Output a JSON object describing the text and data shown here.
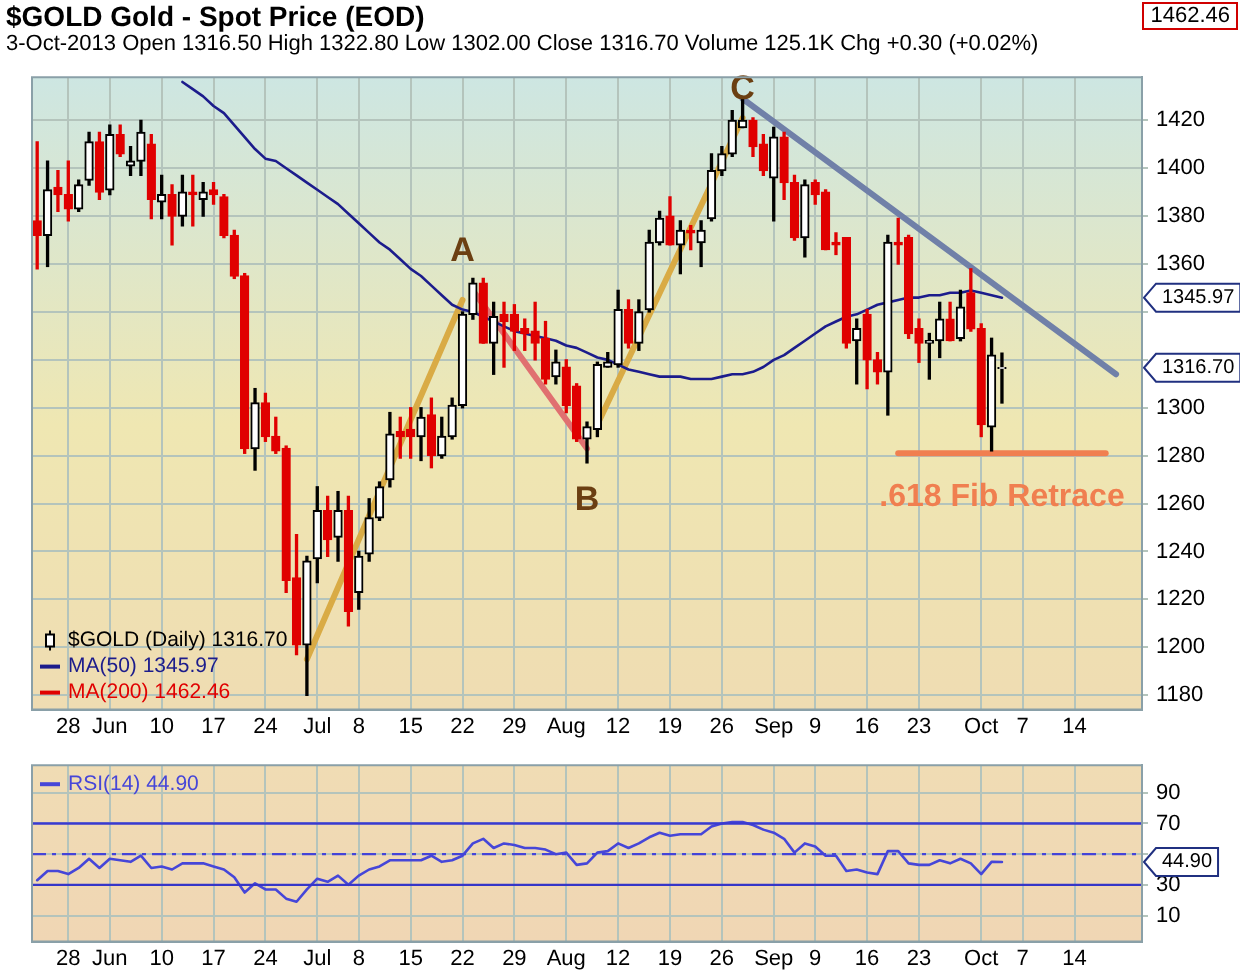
{
  "chart_data": [
    {
      "type": "candlestick",
      "title": "$GOLD Gold - Spot Price (EOD)",
      "subtitle": "3-Oct-2013   Open 1316.50  High 1322.80  Low 1302.00  Close 1316.70  Volume 125.1K  Chg +0.30 (+0.02%)",
      "categories": [
        null,
        null,
        null,
        "28",
        null,
        null,
        null,
        "Jun",
        null,
        null,
        null,
        null,
        "10",
        null,
        null,
        null,
        null,
        "17",
        null,
        null,
        null,
        null,
        "24",
        null,
        null,
        null,
        null,
        "Jul",
        null,
        null,
        null,
        "8",
        null,
        null,
        null,
        null,
        "15",
        null,
        null,
        null,
        null,
        "22",
        null,
        null,
        null,
        null,
        "29",
        null,
        null,
        null,
        null,
        "Aug",
        null,
        null,
        null,
        null,
        "12",
        null,
        null,
        null,
        null,
        "19",
        null,
        null,
        null,
        null,
        "26",
        null,
        null,
        null,
        null,
        "Sep",
        null,
        null,
        null,
        "9",
        null,
        null,
        null,
        null,
        "16",
        null,
        null,
        null,
        null,
        "23",
        null,
        null,
        null,
        null,
        null,
        "Oct",
        null,
        null,
        null,
        "7",
        null,
        null,
        null,
        null,
        "14",
        null,
        null,
        null,
        null,
        null,
        null
      ],
      "ylim": [
        1174,
        1438
      ],
      "yticks": [
        1180,
        1200,
        1220,
        1240,
        1260,
        1280,
        1300,
        {
          "value": 1320,
          "label": null
        },
        {
          "value": 1340,
          "label": null
        },
        1360,
        1380,
        1400,
        1420
      ],
      "grid": true,
      "legend": "bottom left",
      "annotations": [
        "A",
        "B",
        "C",
        "1345.97",
        "1316.70",
        "1462.46"
      ],
      "series": [
        {
          "name": "$GOLD (Daily) 1316.70",
          "type": "candlestick",
          "color": "#000000",
          "ohlc": [
            [
              1378,
              1411,
              1358,
              1372
            ],
            [
              1372,
              1403,
              1359,
              1391
            ],
            [
              1392,
              1399,
              1382,
              1389
            ],
            [
              1389,
              1403,
              1378,
              1383
            ],
            [
              1383,
              1395,
              1382,
              1393
            ],
            [
              1395,
              1415,
              1393,
              1411
            ],
            [
              1411,
              1415,
              1387,
              1390
            ],
            [
              1391,
              1418,
              1389,
              1414
            ],
            [
              1414,
              1418,
              1405,
              1406
            ],
            [
              1401,
              1409,
              1397,
              1403
            ],
            [
              1403,
              1420,
              1397,
              1415
            ],
            [
              1410,
              1414,
              1379,
              1387
            ],
            [
              1386,
              1397,
              1379,
              1389
            ],
            [
              1389,
              1393,
              1368,
              1380
            ],
            [
              1380,
              1397,
              1376,
              1390
            ],
            [
              1390,
              1397,
              1376,
              1389
            ],
            [
              1387,
              1394,
              1380,
              1390
            ],
            [
              1391,
              1394,
              1385,
              1389
            ],
            [
              1388,
              1389,
              1371,
              1372
            ],
            [
              1372,
              1374,
              1354,
              1355
            ],
            [
              1355,
              1356,
              1281,
              1283
            ],
            [
              1283,
              1308,
              1274,
              1302
            ],
            [
              1302,
              1306,
              1286,
              1288
            ],
            [
              1288,
              1296,
              1281,
              1282
            ],
            [
              1283,
              1284,
              1223,
              1228
            ],
            [
              1229,
              1247,
              1197,
              1201
            ],
            [
              1201,
              1238,
              1180,
              1236
            ],
            [
              1237,
              1267,
              1227,
              1257
            ],
            [
              1257,
              1263,
              1238,
              1245
            ],
            [
              1246,
              1265,
              1236,
              1257
            ],
            [
              1257,
              1263,
              1209,
              1215
            ],
            [
              1223,
              1240,
              1216,
              1238
            ],
            [
              1239,
              1262,
              1236,
              1254
            ],
            [
              1254,
              1269,
              1253,
              1267
            ],
            [
              1270,
              1298,
              1267,
              1289
            ],
            [
              1290,
              1296,
              1279,
              1288
            ],
            [
              1291,
              1300,
              1279,
              1288
            ],
            [
              1288,
              1300,
              1278,
              1296
            ],
            [
              1297,
              1304,
              1275,
              1280
            ],
            [
              1280,
              1296,
              1279,
              1288
            ],
            [
              1288,
              1304,
              1287,
              1301
            ],
            [
              1301,
              1340,
              1300,
              1339
            ],
            [
              1339,
              1354,
              1337,
              1352
            ],
            [
              1352,
              1354,
              1327,
              1327
            ],
            [
              1327,
              1344,
              1314,
              1338
            ],
            [
              1339,
              1344,
              1317,
              1336
            ],
            [
              1339,
              1343,
              1324,
              1332
            ],
            [
              1333,
              1337,
              1324,
              1331
            ],
            [
              1332,
              1344,
              1320,
              1327
            ],
            [
              1329,
              1336,
              1310,
              1312
            ],
            [
              1313,
              1324,
              1310,
              1319
            ],
            [
              1317,
              1320,
              1298,
              1301
            ],
            [
              1309,
              1310,
              1286,
              1287
            ],
            [
              1287,
              1294,
              1277,
              1292
            ],
            [
              1291,
              1319,
              1288,
              1318
            ],
            [
              1317,
              1323,
              1317,
              1319
            ],
            [
              1318,
              1349,
              1317,
              1341
            ],
            [
              1341,
              1345,
              1325,
              1327
            ],
            [
              1327,
              1345,
              1324,
              1340
            ],
            [
              1341,
              1374,
              1340,
              1369
            ],
            [
              1369,
              1382,
              1368,
              1379
            ],
            [
              1380,
              1388,
              1368,
              1368
            ],
            [
              1368,
              1378,
              1356,
              1374
            ],
            [
              1374,
              1376,
              1366,
              1373
            ],
            [
              1369,
              1378,
              1359,
              1374
            ],
            [
              1379,
              1406,
              1378,
              1399
            ],
            [
              1399,
              1409,
              1397,
              1406
            ],
            [
              1406,
              1424,
              1405,
              1420
            ],
            [
              1417,
              1429,
              1417,
              1420
            ],
            [
              1420,
              1421,
              1405,
              1409
            ],
            [
              1410,
              1414,
              1397,
              1399
            ],
            [
              1396,
              1417,
              1378,
              1413
            ],
            [
              1413,
              1415,
              1387,
              1394
            ],
            [
              1394,
              1397,
              1370,
              1371
            ],
            [
              1371,
              1395,
              1363,
              1393
            ],
            [
              1394,
              1395,
              1385,
              1389
            ],
            [
              1390,
              1391,
              1366,
              1366
            ],
            [
              1369,
              1373,
              1364,
              1368
            ],
            [
              1371,
              1371,
              1325,
              1327
            ],
            [
              1328,
              1337,
              1310,
              1333
            ],
            [
              1339,
              1341,
              1308,
              1320
            ],
            [
              1320,
              1323,
              1310,
              1315
            ],
            [
              1315,
              1372,
              1297,
              1369
            ],
            [
              1369,
              1379,
              1360,
              1368
            ],
            [
              1371,
              1372,
              1329,
              1331
            ],
            [
              1333,
              1337,
              1319,
              1327
            ],
            [
              1327,
              1331,
              1312,
              1328
            ],
            [
              1328,
              1344,
              1321,
              1337
            ],
            [
              1337,
              1344,
              1328,
              1328
            ],
            [
              1329,
              1349,
              1328,
              1342
            ],
            [
              1348,
              1358,
              1332,
              1333
            ],
            [
              1333,
              1335,
              1288,
              1293
            ],
            [
              1292,
              1329,
              1282,
              1322
            ],
            [
              1316.5,
              1322.8,
              1302,
              1316.7
            ],
            null,
            null,
            null,
            null,
            null,
            null,
            null,
            null,
            null,
            null,
            null,
            null,
            null
          ],
          "colors": [
            "#e00000",
            "#000000",
            "#e00000",
            "#e00000",
            "#000000",
            "#000000",
            "#e00000",
            "#000000",
            "#e00000",
            "#000000",
            "#000000",
            "#e00000",
            "#000000",
            "#e00000",
            "#000000",
            "#e00000",
            "#000000",
            "#e00000",
            "#e00000",
            "#e00000",
            "#e00000",
            "#000000",
            "#e00000",
            "#e00000",
            "#e00000",
            "#e00000",
            "#000000",
            "#000000",
            "#e00000",
            "#000000",
            "#e00000",
            "#000000",
            "#000000",
            "#000000",
            "#000000",
            "#e00000",
            "#e00000",
            "#000000",
            "#e00000",
            "#000000",
            "#000000",
            "#000000",
            "#000000",
            "#e00000",
            "#000000",
            "#e00000",
            "#e00000",
            "#e00000",
            "#e00000",
            "#e00000",
            "#000000",
            "#e00000",
            "#e00000",
            "#000000",
            "#000000",
            "#000000",
            "#000000",
            "#e00000",
            "#000000",
            "#000000",
            "#000000",
            "#e00000",
            "#000000",
            "#e00000",
            "#000000",
            "#000000",
            "#000000",
            "#000000",
            "#000000",
            "#e00000",
            "#e00000",
            "#000000",
            "#e00000",
            "#e00000",
            "#000000",
            "#e00000",
            "#e00000",
            "#e00000",
            "#e00000",
            "#000000",
            "#e00000",
            "#e00000",
            "#000000",
            "#e00000",
            "#e00000",
            "#e00000",
            "#000000",
            "#000000",
            "#e00000",
            "#000000",
            "#e00000",
            "#e00000",
            "#000000",
            "#000000",
            null,
            null,
            null,
            null,
            null,
            null,
            null,
            null,
            null,
            null,
            null,
            null,
            null
          ]
        },
        {
          "name": "MA(50) 1345.97",
          "type": "line",
          "color": "#1c1c8c",
          "values": [
            null,
            null,
            null,
            null,
            null,
            null,
            null,
            null,
            null,
            null,
            null,
            null,
            null,
            null,
            1436,
            1433,
            1430,
            1426,
            1423,
            1418,
            1413,
            1408,
            1404,
            1403,
            1400,
            1397,
            1394,
            1391,
            1388,
            1385,
            1381,
            1377,
            1373,
            1369,
            1366,
            1362,
            1358,
            1355,
            1351,
            1347,
            1343,
            1341,
            1340,
            1338,
            1336,
            1334,
            1332,
            1331,
            1330,
            1329,
            1328,
            1326,
            1325,
            1323,
            1321,
            1320,
            1318,
            1316,
            1315,
            1314,
            1313,
            1313,
            1313,
            1312,
            1312,
            1312,
            1313,
            1314,
            1314,
            1315,
            1317,
            1320,
            1322,
            1325,
            1328,
            1331,
            1334,
            1336,
            1338,
            1339,
            1341,
            1343,
            1344,
            1345,
            1346,
            1346,
            1347,
            1347,
            1348,
            1348,
            1349,
            1348,
            1347,
            1345.97,
            null,
            null,
            null,
            null,
            null,
            null,
            null,
            null,
            null,
            null,
            null,
            null,
            null
          ]
        },
        {
          "name": "MA(200) 1462.46",
          "type": "line",
          "color": "#e00000",
          "values": [
            null,
            null,
            null,
            null,
            null,
            null,
            null,
            null,
            null,
            null,
            null,
            null,
            null,
            null,
            null,
            null,
            null,
            null,
            null,
            null,
            null,
            null,
            null,
            null,
            null,
            null,
            null,
            null,
            null,
            null,
            null,
            null,
            null,
            null,
            null,
            null,
            null,
            null,
            null,
            null,
            null,
            null,
            null,
            null,
            null,
            null,
            null,
            null,
            null,
            null,
            null,
            null,
            null,
            null,
            null,
            null,
            null,
            null,
            null,
            null,
            null,
            null,
            null,
            null,
            null,
            null,
            null,
            null,
            null,
            null,
            null,
            null,
            null,
            null,
            null,
            null,
            null,
            null,
            null,
            null,
            null,
            null,
            null,
            null,
            null,
            null,
            null,
            null,
            null,
            null,
            null,
            null,
            null,
            null,
            null,
            null,
            null,
            null,
            null,
            null,
            null,
            null,
            null,
            null,
            null,
            null,
            null
          ]
        },
        {
          "type": "line",
          "color": "#d9ab45",
          "values": [
            null,
            null,
            null,
            null,
            null,
            null,
            null,
            null,
            null,
            null,
            null,
            null,
            null,
            null,
            null,
            null,
            null,
            null,
            null,
            null,
            null,
            null,
            null,
            null,
            null,
            null,
            1195,
            null,
            null,
            null,
            null,
            null,
            null,
            null,
            null,
            null,
            null,
            null,
            null,
            null,
            null,
            1345,
            null,
            null,
            null,
            null,
            null,
            null,
            null,
            null,
            null,
            null,
            null,
            null,
            null,
            null,
            null,
            null,
            null,
            null,
            null,
            null,
            null,
            null,
            null,
            null,
            null,
            null,
            null,
            null,
            null,
            null,
            null,
            null,
            null,
            null,
            null,
            null,
            null,
            null,
            null,
            null,
            null,
            null,
            null,
            null,
            null,
            null,
            null,
            null,
            null,
            null,
            null,
            null,
            null,
            null,
            null,
            null,
            null,
            null,
            null,
            null,
            null,
            null,
            null,
            null,
            null
          ]
        },
        {
          "type": "line",
          "color": "#e07070",
          "values": [
            null,
            null,
            null,
            null,
            null,
            null,
            null,
            null,
            null,
            null,
            null,
            null,
            null,
            null,
            null,
            null,
            null,
            null,
            null,
            null,
            null,
            null,
            null,
            null,
            null,
            null,
            null,
            null,
            null,
            null,
            null,
            null,
            null,
            null,
            null,
            null,
            null,
            null,
            null,
            null,
            null,
            null,
            1349,
            null,
            null,
            null,
            null,
            null,
            null,
            null,
            null,
            null,
            null,
            1283,
            null,
            null,
            null,
            null,
            null,
            null,
            null,
            null,
            null,
            null,
            null,
            null,
            null,
            null,
            null,
            null,
            null,
            null,
            null,
            null,
            null,
            null,
            null,
            null,
            null,
            null,
            null,
            null,
            null,
            null,
            null,
            null,
            null,
            null,
            null,
            null,
            null,
            null,
            null,
            null,
            null,
            null,
            null,
            null,
            null,
            null,
            null,
            null,
            null,
            null,
            null,
            null,
            null
          ]
        },
        {
          "type": "line",
          "color": "#d9ab45",
          "values": [
            null,
            null,
            null,
            null,
            null,
            null,
            null,
            null,
            null,
            null,
            null,
            null,
            null,
            null,
            null,
            null,
            null,
            null,
            null,
            null,
            null,
            null,
            null,
            null,
            null,
            null,
            null,
            null,
            null,
            null,
            null,
            null,
            null,
            null,
            null,
            null,
            null,
            null,
            null,
            null,
            null,
            null,
            null,
            null,
            null,
            null,
            null,
            null,
            null,
            null,
            null,
            null,
            null,
            null,
            1293,
            null,
            null,
            null,
            null,
            null,
            null,
            null,
            null,
            null,
            null,
            null,
            null,
            null,
            1421,
            null,
            null,
            null,
            null,
            null,
            null,
            null,
            null,
            null,
            null,
            null,
            null,
            null,
            null,
            null,
            null,
            null,
            null,
            null,
            null,
            null,
            null,
            null,
            null,
            null,
            null,
            null,
            null,
            null,
            null,
            null,
            null,
            null,
            null,
            null,
            null,
            null,
            null
          ]
        },
        {
          "type": "line",
          "color": "#7080a8",
          "values": [
            null,
            null,
            null,
            null,
            null,
            null,
            null,
            null,
            null,
            null,
            null,
            null,
            null,
            null,
            null,
            null,
            null,
            null,
            null,
            null,
            null,
            null,
            null,
            null,
            null,
            null,
            null,
            null,
            null,
            null,
            null,
            null,
            null,
            null,
            null,
            null,
            null,
            null,
            null,
            null,
            null,
            null,
            null,
            null,
            null,
            null,
            null,
            null,
            null,
            null,
            null,
            null,
            null,
            null,
            null,
            null,
            null,
            null,
            null,
            null,
            null,
            null,
            null,
            null,
            null,
            null,
            null,
            null,
            1429,
            null,
            null,
            null,
            null,
            null,
            null,
            null,
            null,
            null,
            null,
            null,
            null,
            null,
            null,
            null,
            null,
            null,
            null,
            null,
            null,
            null,
            null,
            null,
            null,
            null,
            null,
            null,
            null,
            null,
            null,
            null,
            null,
            null,
            null,
            null,
            1314,
            null,
            null
          ]
        },
        {
          "name": ".618 Fib Retrace",
          "type": "line",
          "color": "#f07f50",
          "values": [
            null,
            null,
            null,
            null,
            null,
            null,
            null,
            null,
            null,
            null,
            null,
            null,
            null,
            null,
            null,
            null,
            null,
            null,
            null,
            null,
            null,
            null,
            null,
            null,
            null,
            null,
            null,
            null,
            null,
            null,
            null,
            null,
            null,
            null,
            null,
            null,
            null,
            null,
            null,
            null,
            null,
            null,
            null,
            null,
            null,
            null,
            null,
            null,
            null,
            null,
            null,
            null,
            null,
            null,
            null,
            null,
            null,
            null,
            null,
            null,
            null,
            null,
            null,
            null,
            null,
            null,
            null,
            null,
            null,
            null,
            null,
            null,
            null,
            null,
            null,
            null,
            null,
            null,
            null,
            null,
            null,
            null,
            null,
            1281,
            null,
            null,
            null,
            null,
            null,
            null,
            null,
            null,
            null,
            null,
            null,
            null,
            null,
            null,
            null,
            null,
            null,
            null,
            null,
            1281,
            null,
            null,
            null
          ]
        }
      ]
    },
    {
      "type": "line",
      "categories": [
        null,
        null,
        null,
        "28",
        null,
        null,
        null,
        "Jun",
        null,
        null,
        null,
        null,
        "10",
        null,
        null,
        null,
        null,
        "17",
        null,
        null,
        null,
        null,
        "24",
        null,
        null,
        null,
        null,
        "Jul",
        null,
        null,
        null,
        "8",
        null,
        null,
        null,
        null,
        "15",
        null,
        null,
        null,
        null,
        "22",
        null,
        null,
        null,
        null,
        "29",
        null,
        null,
        null,
        null,
        "Aug",
        null,
        null,
        null,
        null,
        "12",
        null,
        null,
        null,
        null,
        "19",
        null,
        null,
        null,
        null,
        "26",
        null,
        null,
        null,
        null,
        "Sep",
        null,
        null,
        null,
        "9",
        null,
        null,
        null,
        null,
        "16",
        null,
        null,
        null,
        null,
        "23",
        null,
        null,
        null,
        null,
        null,
        "Oct",
        null,
        null,
        null,
        "7",
        null,
        null,
        null,
        null,
        "14",
        null,
        null,
        null,
        null,
        null,
        null
      ],
      "ylim": [
        -7,
        108
      ],
      "yticks": [
        10,
        30,
        {
          "value": 50,
          "label": null
        },
        70,
        90
      ],
      "grid": true,
      "legend": "top left",
      "ref_lines": [
        {
          "axis": "y",
          "value": 70,
          "color": "#3a3ad0"
        },
        {
          "axis": "y",
          "value": 30,
          "color": "#3636c8"
        },
        {
          "axis": "y",
          "value": 50,
          "color": "#4444d8",
          "line_style": "dashed"
        }
      ],
      "annotations": [
        "44.90"
      ],
      "series": [
        {
          "name": "RSI(14) 44.90",
          "color": "#4646d8",
          "values": [
            33,
            39,
            39,
            37,
            41,
            47,
            41,
            47,
            46,
            45,
            49,
            41,
            42,
            40,
            44,
            44,
            44,
            42,
            40,
            35,
            25,
            31,
            27,
            27,
            21,
            19,
            27,
            34,
            32,
            36,
            30,
            36,
            40,
            42,
            46,
            46,
            46,
            46,
            49,
            45,
            46,
            49,
            57,
            60,
            54,
            57,
            56,
            54,
            54,
            53,
            50,
            51,
            43,
            44,
            51,
            52,
            57,
            54,
            57,
            61,
            64,
            62,
            63,
            63,
            63,
            68,
            70,
            71,
            71,
            69,
            66,
            64,
            60,
            51,
            57,
            55,
            49,
            49,
            39,
            40,
            38,
            37,
            52,
            52,
            44,
            43,
            43,
            46,
            44,
            47,
            44,
            37,
            45,
            44.9,
            null,
            null,
            null,
            null,
            null,
            null,
            null,
            null,
            null,
            null,
            null,
            null,
            null
          ]
        }
      ]
    }
  ]
}
